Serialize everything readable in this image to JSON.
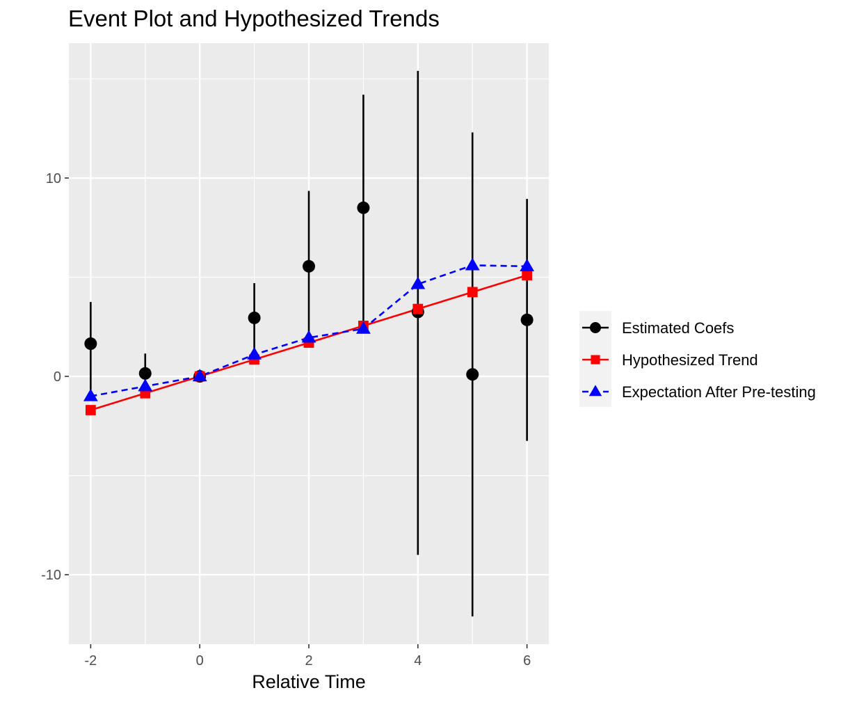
{
  "chart_data": {
    "type": "line",
    "title": "Event Plot and Hypothesized Trends",
    "xlabel": "Relative Time",
    "ylabel": "",
    "xlim": [
      -2.4,
      6.4
    ],
    "ylim": [
      -13.5,
      16.8
    ],
    "x_ticks": [
      -2,
      0,
      2,
      4,
      6
    ],
    "x_tick_labels": [
      "-2",
      "0",
      "2",
      "4",
      "6"
    ],
    "x_minor_ticks": [
      -1,
      1,
      3,
      5
    ],
    "y_ticks": [
      -10,
      0,
      10
    ],
    "y_tick_labels": [
      "-10",
      "0",
      "10"
    ],
    "y_minor_ticks": [
      -5,
      5,
      15
    ],
    "grid": true,
    "legend_position": "right",
    "x": [
      -2,
      -1,
      0,
      1,
      2,
      3,
      4,
      5,
      6
    ],
    "series": [
      {
        "name": "Estimated Coefs",
        "color": "#000000",
        "marker": "circle",
        "line": "none",
        "values": [
          1.65,
          0.15,
          0.0,
          2.95,
          5.55,
          8.5,
          3.25,
          0.1,
          2.85
        ],
        "ci_lower": [
          -1.05,
          -0.85,
          0.0,
          1.05,
          1.65,
          2.55,
          -9.0,
          -12.1,
          -3.25
        ],
        "ci_upper": [
          3.75,
          1.15,
          0.0,
          4.7,
          9.35,
          14.2,
          15.4,
          12.3,
          8.95
        ]
      },
      {
        "name": "Hypothesized Trend",
        "color": "#ff0000",
        "marker": "square",
        "line": "solid",
        "values": [
          -1.7,
          -0.85,
          0.0,
          0.85,
          1.7,
          2.55,
          3.4,
          4.25,
          5.1
        ]
      },
      {
        "name": "Expectation After Pre-testing",
        "color": "#0000ff",
        "marker": "triangle",
        "line": "dashed",
        "values": [
          -1.0,
          -0.5,
          0.0,
          1.1,
          1.95,
          2.4,
          4.65,
          5.6,
          5.55
        ]
      }
    ]
  }
}
